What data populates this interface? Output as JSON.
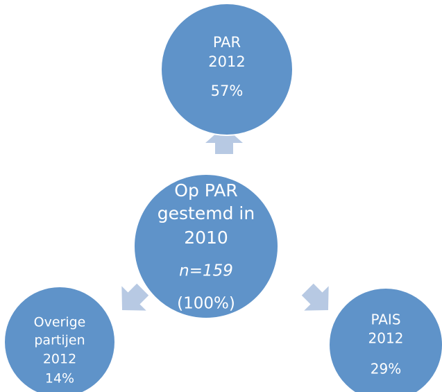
{
  "nodes": [
    {
      "lines": [
        "Op PAR",
        "gestemd in",
        "2010",
        "n=159",
        "(100%)"
      ]
    },
    {
      "lines": [
        "PAR",
        "2012",
        "57%"
      ]
    },
    {
      "lines": [
        "Overige",
        "partijen",
        "2012",
        "14%"
      ]
    },
    {
      "lines": [
        "PAIS",
        "2012",
        "29%"
      ]
    }
  ]
}
